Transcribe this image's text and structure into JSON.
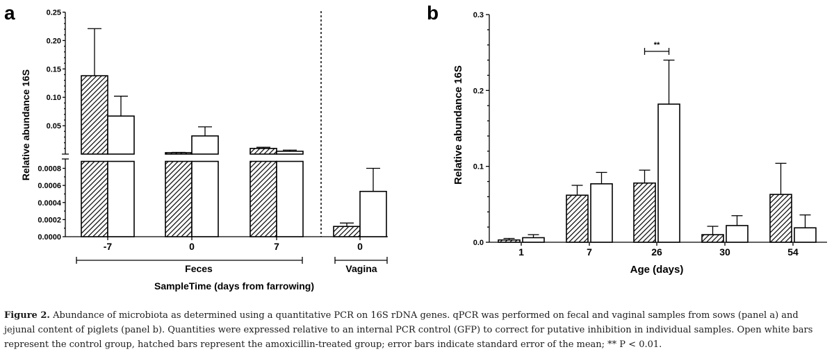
{
  "panel_a": {
    "letter": "a",
    "ylabel": "Relative abundance 16S",
    "xlabel": "SampleTime (days from farrowing)",
    "group_feces": "Feces",
    "group_vagina": "Vagina"
  },
  "panel_b": {
    "letter": "b",
    "ylabel": "Relative abundance 16S",
    "xlabel": "Age (days)",
    "significance": "**"
  },
  "caption": {
    "label": "Figure 2.",
    "text": " Abundance of microbiota as determined using a quantitative PCR on 16S rDNA genes. qPCR was performed on fecal and vaginal samples from sows (panel a) and jejunal content of piglets (panel b). Quantities were expressed relative to an internal PCR control (GFP) to correct for putative inhibition in individual samples. Open white bars represent the control group, hatched bars represent the amoxicillin-treated group; error bars indicate standard error of the mean; ** P < 0.01."
  },
  "colors": {
    "bar_fill_control": "#ffffff",
    "bar_hatch_treated": "#000000",
    "axis": "#000000"
  },
  "chart_data": [
    {
      "type": "bar",
      "panel": "a",
      "xlabel": "SampleTime (days from farrowing)",
      "ylabel": "Relative abundance 16S",
      "y_axis_break": true,
      "ylim_lower": [
        0,
        0.0008
      ],
      "ylim_upper": [
        0,
        0.25
      ],
      "lower_ticks": [
        "0.0000",
        "0.0002",
        "0.0004",
        "0.0006",
        "0.0008"
      ],
      "upper_ticks": [
        "0.05",
        "0.10",
        "0.15",
        "0.20",
        "0.25"
      ],
      "categories": [
        "-7",
        "0",
        "7",
        "0"
      ],
      "groups": [
        {
          "label": "Feces",
          "categories": [
            "-7",
            "0",
            "7"
          ]
        },
        {
          "label": "Vagina",
          "categories": [
            "0"
          ]
        }
      ],
      "series": [
        {
          "pattern": "hatched",
          "values": [
            0.138,
            0.0025,
            0.01,
            0.00012
          ],
          "errors": [
            0.083,
            0.0005,
            0.002,
            4e-05
          ]
        },
        {
          "pattern": "open",
          "values": [
            0.067,
            0.032,
            0.005,
            0.00053
          ],
          "errors": [
            0.035,
            0.016,
            0.002,
            0.00027
          ]
        }
      ]
    },
    {
      "type": "bar",
      "panel": "b",
      "xlabel": "Age (days)",
      "ylabel": "Relative abundance 16S",
      "ylim": [
        0,
        0.3
      ],
      "y_ticks": [
        "0.0",
        "0.1",
        "0.2",
        "0.3"
      ],
      "categories": [
        "1",
        "7",
        "26",
        "30",
        "54"
      ],
      "series": [
        {
          "pattern": "hatched",
          "values": [
            0.003,
            0.062,
            0.078,
            0.01,
            0.063
          ],
          "errors": [
            0.002,
            0.013,
            0.017,
            0.011,
            0.041
          ]
        },
        {
          "pattern": "open",
          "values": [
            0.006,
            0.077,
            0.182,
            0.022,
            0.019
          ],
          "errors": [
            0.004,
            0.015,
            0.058,
            0.013,
            0.017
          ]
        }
      ],
      "annotations": [
        {
          "text": "**",
          "between": [
            "26 hatched",
            "26 open"
          ]
        }
      ]
    }
  ]
}
